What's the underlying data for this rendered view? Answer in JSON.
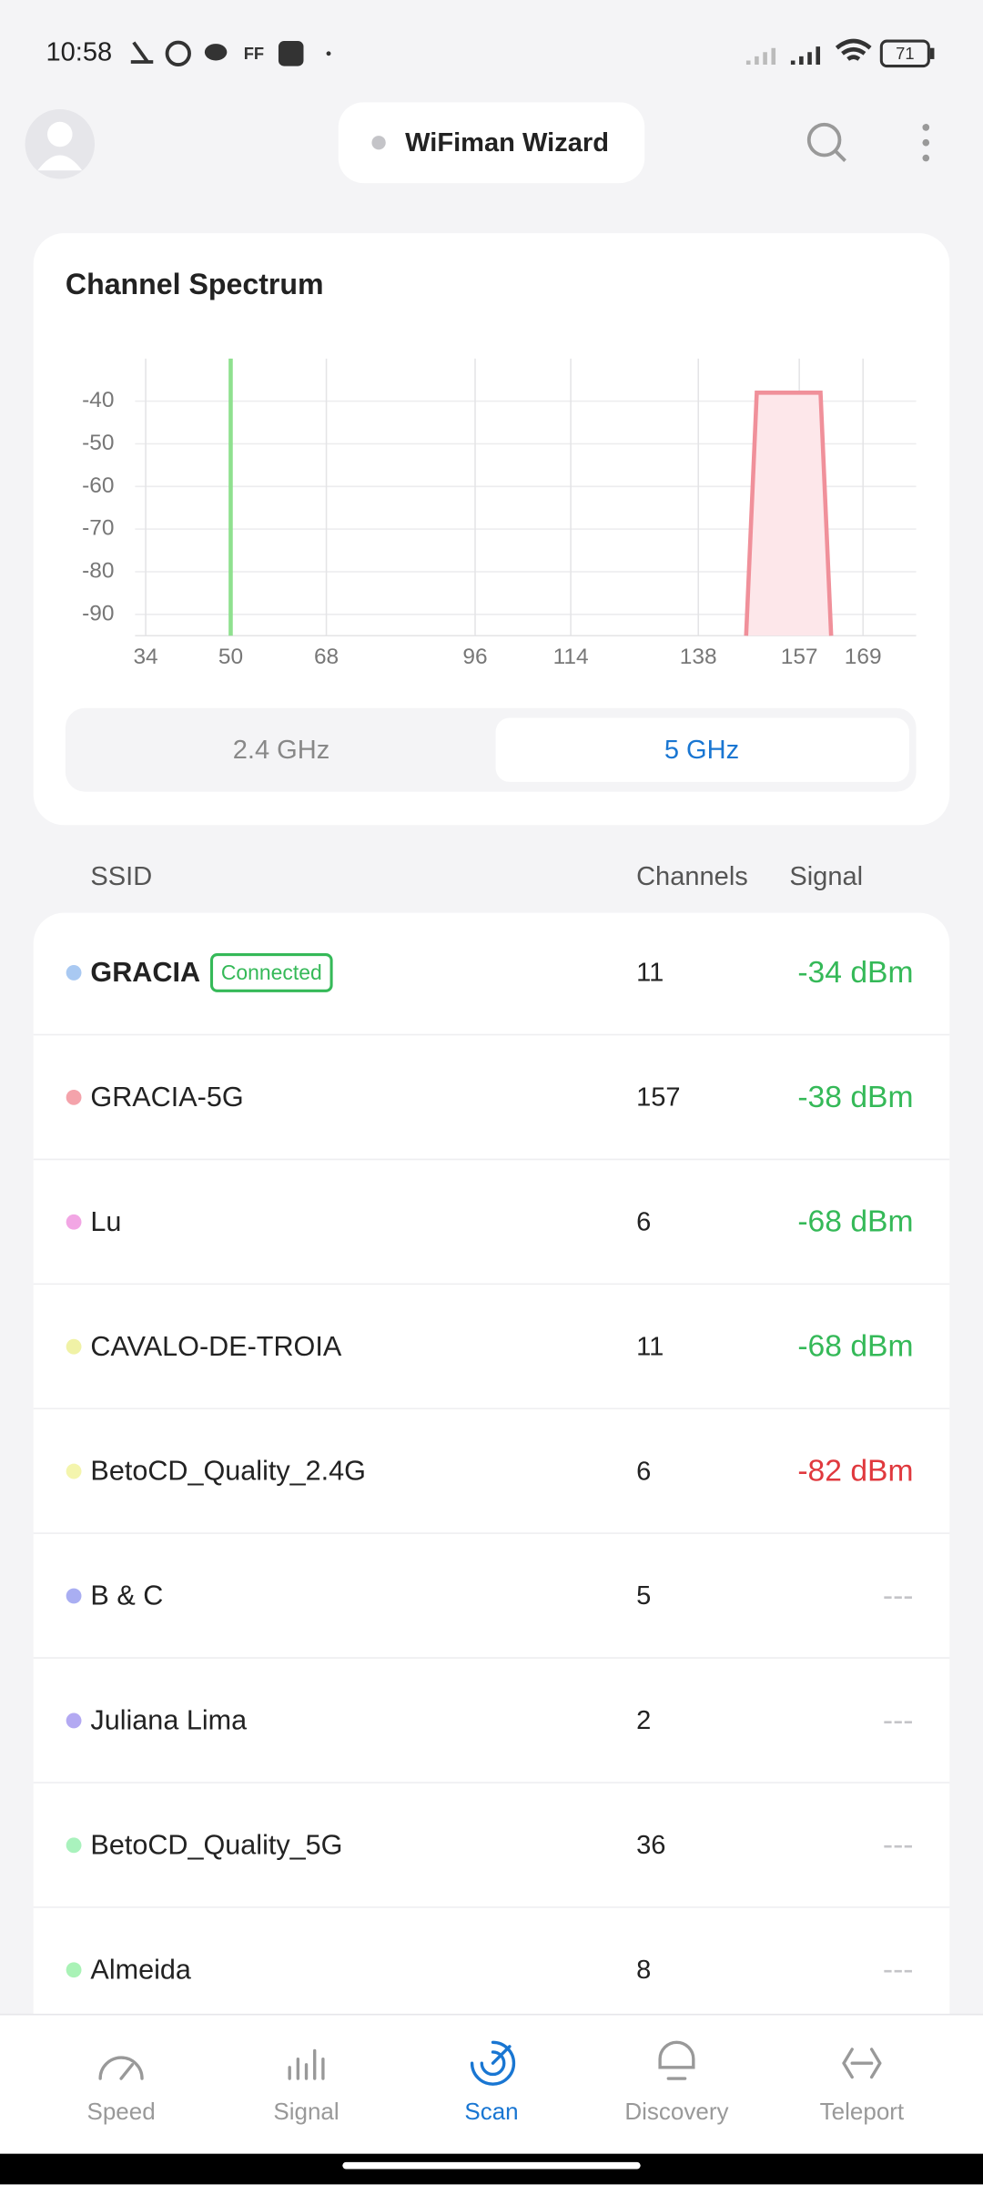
{
  "status_bar": {
    "time": "10:58",
    "battery": "71"
  },
  "header": {
    "title": "WiFiman Wizard"
  },
  "chart_data": {
    "type": "line",
    "title": "Channel Spectrum",
    "xlim": [
      32,
      179
    ],
    "ylim": [
      -95,
      -30
    ],
    "xticks": [
      34,
      50,
      68,
      96,
      114,
      138,
      157,
      169
    ],
    "yticks": [
      -40,
      -50,
      -60,
      -70,
      -80,
      -90
    ],
    "grid": true,
    "series": [
      {
        "color": "#8fe08f",
        "x": [
          50,
          50
        ],
        "values": [
          -95,
          -30
        ]
      },
      {
        "color": "#f0909a",
        "area_color": "#fde7ea",
        "x": [
          147,
          149,
          161,
          163
        ],
        "values": [
          -95,
          -38,
          -38,
          -95
        ]
      }
    ]
  },
  "band_tabs": {
    "options": [
      "2.4 GHz",
      "5 GHz"
    ],
    "selected": 1
  },
  "table": {
    "columns": [
      "SSID",
      "Channels",
      "Signal"
    ],
    "badge": "Connected",
    "rows": [
      {
        "ssid": "GRACIA",
        "color": "#a9c9f2",
        "channel": "11",
        "signal": "-34 dBm",
        "signal_color": "#35b958",
        "connected": true
      },
      {
        "ssid": "GRACIA-5G",
        "color": "#f4a3ab",
        "channel": "157",
        "signal": "-38 dBm",
        "signal_color": "#35b958"
      },
      {
        "ssid": "Lu",
        "color": "#f2a6e4",
        "channel": "6",
        "signal": "-68 dBm",
        "signal_color": "#35b958"
      },
      {
        "ssid": "CAVALO-DE-TROIA",
        "color": "#f0f2a6",
        "channel": "11",
        "signal": "-68 dBm",
        "signal_color": "#35b958"
      },
      {
        "ssid": "BetoCD_Quality_2.4G",
        "color": "#f4f5ad",
        "channel": "6",
        "signal": "-82 dBm",
        "signal_color": "#e0393e"
      },
      {
        "ssid": "B & C",
        "color": "#a9aef2",
        "channel": "5",
        "signal": "---",
        "signal_color": "#c4c4c8"
      },
      {
        "ssid": "Juliana Lima",
        "color": "#b3a9f2",
        "channel": "2",
        "signal": "---",
        "signal_color": "#c4c4c8"
      },
      {
        "ssid": "BetoCD_Quality_5G",
        "color": "#a9f2bd",
        "channel": "36",
        "signal": "---",
        "signal_color": "#c4c4c8"
      },
      {
        "ssid": "Almeida",
        "color": "#a9f2b6",
        "channel": "8",
        "signal": "---",
        "signal_color": "#c4c4c8"
      }
    ]
  },
  "nav": {
    "items": [
      "Speed",
      "Signal",
      "Scan",
      "Discovery",
      "Teleport"
    ],
    "selected": 2
  }
}
